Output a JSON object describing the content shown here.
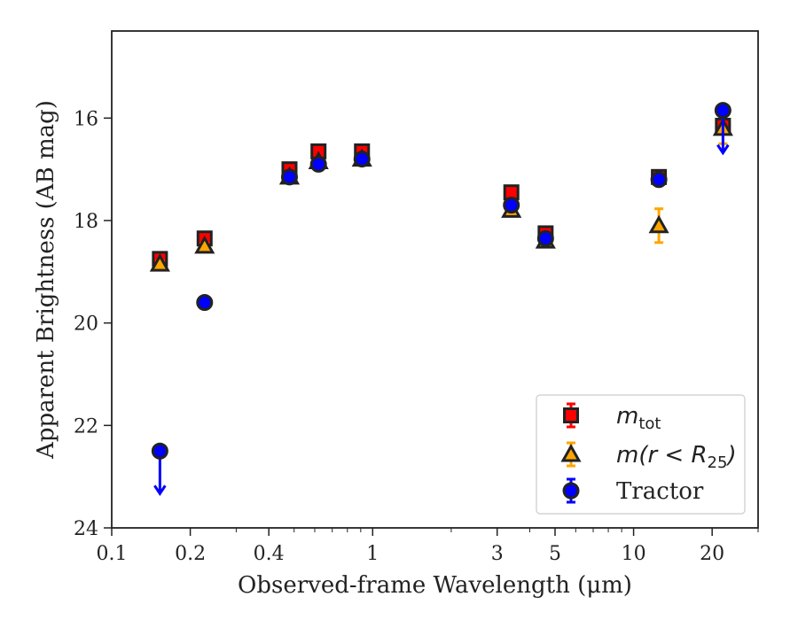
{
  "chart_data": {
    "type": "scatter",
    "xlabel": "Observed-frame Wavelength (μm)",
    "ylabel": "Apparent Brightness (AB mag)",
    "xscale": "log",
    "xlim": [
      0.1,
      30
    ],
    "ylim": [
      24,
      14.3
    ],
    "y_inverted": true,
    "x_major_ticks": [
      0.1,
      0.2,
      0.4,
      1,
      3,
      5,
      10,
      20
    ],
    "x_major_tick_labels": [
      "0.1",
      "0.2",
      "0.4",
      "1",
      "3",
      "5",
      "10",
      "20"
    ],
    "y_ticks": [
      16,
      18,
      20,
      22,
      24
    ],
    "y_tick_labels": [
      "16",
      "18",
      "20",
      "22",
      "24"
    ],
    "grid": false,
    "legend_position": "lower-right",
    "series": [
      {
        "name": "m_tot",
        "legend_main": "m",
        "legend_sub": "tot",
        "marker": "square",
        "color": "#ff0000",
        "edge_color": "#222222",
        "x": [
          0.153,
          0.227,
          0.48,
          0.62,
          0.91,
          3.4,
          4.6,
          12.5,
          22
        ],
        "y": [
          18.75,
          18.35,
          17.0,
          16.65,
          16.65,
          17.45,
          18.25,
          17.15,
          16.15
        ],
        "yerr": [
          0.05,
          0.05,
          0.05,
          0.05,
          0.05,
          0.05,
          0.05,
          0.05,
          0.08
        ],
        "upper_limit": [
          false,
          false,
          false,
          false,
          false,
          false,
          false,
          false,
          false
        ]
      },
      {
        "name": "m(r < R25)",
        "legend_main": "m(r < R",
        "legend_sub": "25",
        "legend_close": ")",
        "marker": "triangle",
        "color": "#ffa500",
        "edge_color": "#222222",
        "x": [
          0.153,
          0.227,
          0.48,
          0.62,
          0.91,
          3.4,
          4.6,
          12.5,
          22
        ],
        "y": [
          18.85,
          18.5,
          17.15,
          16.85,
          16.8,
          17.8,
          18.4,
          18.1,
          16.2
        ],
        "yerr": [
          0.05,
          0.05,
          0.05,
          0.05,
          0.05,
          0.05,
          0.05,
          0.33,
          0.3
        ],
        "upper_limit": [
          false,
          false,
          false,
          false,
          false,
          false,
          false,
          false,
          false
        ]
      },
      {
        "name": "Tractor",
        "marker": "circle",
        "color": "#0000ff",
        "edge_color": "#222222",
        "x": [
          0.153,
          0.227,
          0.48,
          0.62,
          0.91,
          3.4,
          4.6,
          12.5,
          22
        ],
        "y": [
          22.5,
          19.6,
          17.15,
          16.9,
          16.8,
          17.7,
          18.35,
          17.2,
          15.85
        ],
        "yerr": [
          0.05,
          0.05,
          0.05,
          0.05,
          0.05,
          0.05,
          0.05,
          0.05,
          0.05
        ],
        "upper_limit": [
          true,
          false,
          false,
          false,
          false,
          false,
          false,
          false,
          true
        ]
      }
    ]
  }
}
